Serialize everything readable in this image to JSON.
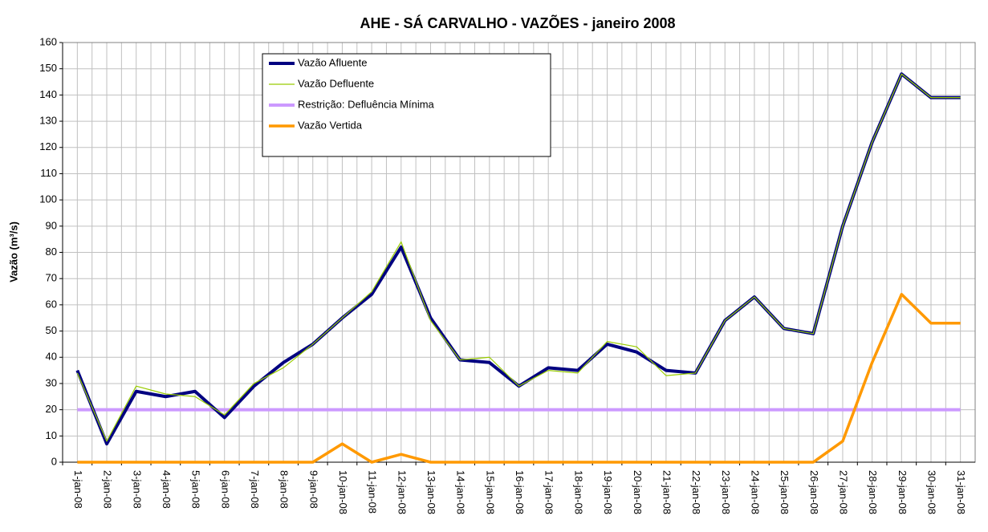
{
  "chart_data": {
    "type": "line",
    "title": "AHE - SÁ CARVALHO - VAZÕES - janeiro 2008",
    "y_label": "Vazão (m³/s)",
    "categories": [
      "1-jan-08",
      "2-jan-08",
      "3-jan-08",
      "4-jan-08",
      "5-jan-08",
      "6-jan-08",
      "7-jan-08",
      "8-jan-08",
      "9-jan-08",
      "10-jan-08",
      "11-jan-08",
      "12-jan-08",
      "13-jan-08",
      "14-jan-08",
      "15-jan-08",
      "16-jan-08",
      "17-jan-08",
      "18-jan-08",
      "19-jan-08",
      "20-jan-08",
      "21-jan-08",
      "22-jan-08",
      "23-jan-08",
      "24-jan-08",
      "25-jan-08",
      "26-jan-08",
      "27-jan-08",
      "28-jan-08",
      "29-jan-08",
      "30-jan-08",
      "31-jan-08"
    ],
    "series": [
      {
        "name": "Vazão Afluente",
        "color": "#000080",
        "width": 4,
        "values": [
          35,
          7,
          27,
          25,
          27,
          17,
          29,
          38,
          45,
          55,
          64,
          82,
          55,
          39,
          38,
          29,
          36,
          35,
          45,
          42,
          35,
          34,
          54,
          63,
          51,
          49,
          90,
          122,
          148,
          139,
          139
        ]
      },
      {
        "name": "Vazão Defluente",
        "color": "#99cc00",
        "width": 1.2,
        "values": [
          34,
          8,
          29,
          26,
          25,
          18,
          30,
          36,
          45,
          55,
          65,
          84,
          54,
          39,
          40,
          29,
          35,
          34,
          46,
          44,
          33,
          34,
          54,
          63,
          51,
          49,
          90,
          122,
          148,
          139,
          139
        ]
      },
      {
        "name": "Restrição: Defluência Mínima",
        "color": "#cc99ff",
        "width": 4,
        "values": [
          20,
          20,
          20,
          20,
          20,
          20,
          20,
          20,
          20,
          20,
          20,
          20,
          20,
          20,
          20,
          20,
          20,
          20,
          20,
          20,
          20,
          20,
          20,
          20,
          20,
          20,
          20,
          20,
          20,
          20,
          20
        ]
      },
      {
        "name": "Vazão Vertida",
        "color": "#ff9900",
        "width": 3.5,
        "values": [
          0,
          0,
          0,
          0,
          0,
          0,
          0,
          0,
          0,
          7,
          0,
          3,
          0,
          0,
          0,
          0,
          0,
          0,
          0,
          0,
          0,
          0,
          0,
          0,
          0,
          0,
          8,
          38,
          64,
          53,
          53
        ]
      }
    ],
    "ylim": [
      0,
      160
    ],
    "yticks": [
      0,
      10,
      20,
      30,
      40,
      50,
      60,
      70,
      80,
      90,
      100,
      110,
      120,
      130,
      140,
      150,
      160
    ],
    "grid": true
  }
}
